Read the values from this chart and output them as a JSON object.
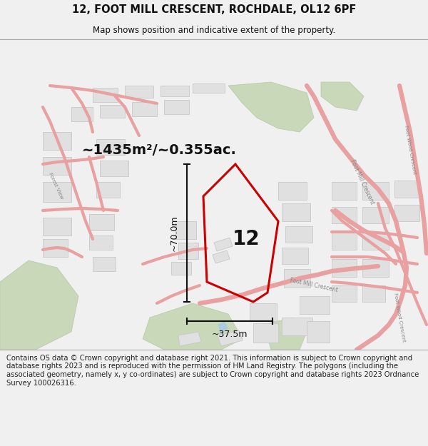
{
  "title_line1": "12, FOOT MILL CRESCENT, ROCHDALE, OL12 6PF",
  "title_line2": "Map shows position and indicative extent of the property.",
  "area_label": "~1435m²/~0.355ac.",
  "number_label": "12",
  "dim_height": "~70.0m",
  "dim_width": "~37.5m",
  "footer_text": "Contains OS data © Crown copyright and database right 2021. This information is subject to Crown copyright and database rights 2023 and is reproduced with the permission of HM Land Registry. The polygons (including the associated geometry, namely x, y co-ordinates) are subject to Crown copyright and database rights 2023 Ordnance Survey 100026316.",
  "bg_color": "#f0f0f0",
  "map_bg": "#f8f8f8",
  "road_color": "#e8a0a0",
  "road_outline_color": "#d08080",
  "building_color": "#e0e0e0",
  "building_edge": "#c8c8c8",
  "green_color": "#c8d8b8",
  "green_edge": "#b8c8a8",
  "highlight_color": "#cc0000",
  "highlight_fill": "none",
  "dim_color": "#111111",
  "title_color": "#111111",
  "footer_color": "#222222",
  "label_color": "#111111",
  "road_label_color": "#aaaaaa",
  "road_label_dark": "#888888",
  "crescent_road_color": "#d4d4d4",
  "crescent_road_fill": "#f0f0f0"
}
